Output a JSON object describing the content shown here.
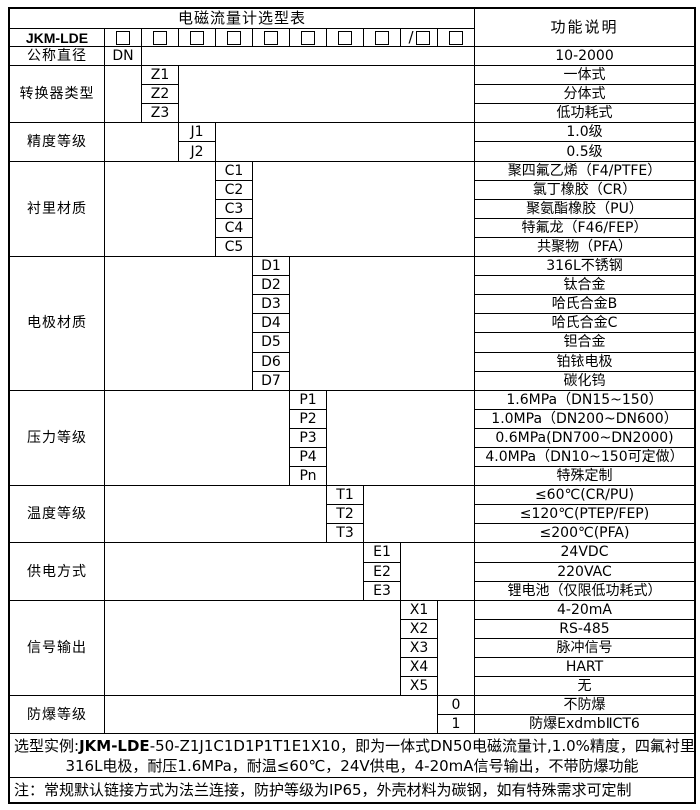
{
  "page": {
    "title": "电磁流量计选型表",
    "function_header": "功能说明",
    "model_code": "JKM-LDE"
  },
  "checkbox_row": {
    "count": 10,
    "slash_index": 8
  },
  "sections": [
    {
      "label": "公称直径",
      "col": 1,
      "items": [
        {
          "code": "DN",
          "desc": "10-2000"
        }
      ]
    },
    {
      "label": "转换器类型",
      "col": 2,
      "items": [
        {
          "code": "Z1",
          "desc": "一体式"
        },
        {
          "code": "Z2",
          "desc": "分体式"
        },
        {
          "code": "Z3",
          "desc": "低功耗式"
        }
      ]
    },
    {
      "label": "精度等级",
      "col": 3,
      "items": [
        {
          "code": "J1",
          "desc": "1.0级"
        },
        {
          "code": "J2",
          "desc": "0.5级"
        }
      ]
    },
    {
      "label": "衬里材质",
      "col": 4,
      "items": [
        {
          "code": "C1",
          "desc": "聚四氟乙烯（F4/PTFE）"
        },
        {
          "code": "C2",
          "desc": "氯丁橡胶（CR）"
        },
        {
          "code": "C3",
          "desc": "聚氨酯橡胶（PU）"
        },
        {
          "code": "C4",
          "desc": "特氟龙（F46/FEP）"
        },
        {
          "code": "C5",
          "desc": "共聚物（PFA）"
        }
      ]
    },
    {
      "label": "电极材质",
      "col": 5,
      "items": [
        {
          "code": "D1",
          "desc": "316L不锈钢"
        },
        {
          "code": "D2",
          "desc": "钛合金"
        },
        {
          "code": "D3",
          "desc": "哈氏合金B"
        },
        {
          "code": "D4",
          "desc": "哈氏合金C"
        },
        {
          "code": "D5",
          "desc": "钽合金"
        },
        {
          "code": "D6",
          "desc": "铂铱电极"
        },
        {
          "code": "D7",
          "desc": "碳化钨"
        }
      ]
    },
    {
      "label": "压力等级",
      "col": 6,
      "items": [
        {
          "code": "P1",
          "desc": "1.6MPa（DN15~150）"
        },
        {
          "code": "P2",
          "desc": "1.0MPa（DN200~DN600）"
        },
        {
          "code": "P3",
          "desc": "0.6MPa(DN700~DN2000)"
        },
        {
          "code": "P4",
          "desc": "4.0MPa（DN10~150可定做）"
        },
        {
          "code": "Pn",
          "desc": "特殊定制"
        }
      ]
    },
    {
      "label": "温度等级",
      "col": 7,
      "items": [
        {
          "code": "T1",
          "desc": "≤60℃(CR/PU)"
        },
        {
          "code": "T2",
          "desc": "≤120℃(PTEP/FEP)"
        },
        {
          "code": "T3",
          "desc": "≤200℃(PFA)"
        }
      ]
    },
    {
      "label": "供电方式",
      "col": 8,
      "items": [
        {
          "code": "E1",
          "desc": "24VDC"
        },
        {
          "code": "E2",
          "desc": "220VAC"
        },
        {
          "code": "E3",
          "desc": "锂电池（仅限低功耗式）"
        }
      ]
    },
    {
      "label": "信号输出",
      "col": 9,
      "items": [
        {
          "code": "X1",
          "desc": "4-20mA"
        },
        {
          "code": "X2",
          "desc": "RS-485"
        },
        {
          "code": "X3",
          "desc": "脉冲信号"
        },
        {
          "code": "X4",
          "desc": "HART"
        },
        {
          "code": "X5",
          "desc": "无"
        }
      ]
    },
    {
      "label": "防爆等级",
      "col": 10,
      "items": [
        {
          "code": "0",
          "desc": "不防爆"
        },
        {
          "code": "1",
          "desc": "防爆ExdmbⅡCT6"
        }
      ]
    }
  ],
  "notes": {
    "example_prefix": "选型实例:",
    "example_model": "JKM-LDE",
    "example_rest": "-50-Z1J1C1D1P1T1E1X10，即为一体式DN50电磁流量计,1.0%精度，四氟衬里，",
    "example_line2": "316L电极，耐压1.6MPa，耐温≤60℃，24V供电，4-20mA信号输出，不带防爆功能",
    "note_line": "注：常规默认链接方式为法兰连接，防护等级为IP65，外壳材料为碳钢，如有特殊需求可定制"
  }
}
